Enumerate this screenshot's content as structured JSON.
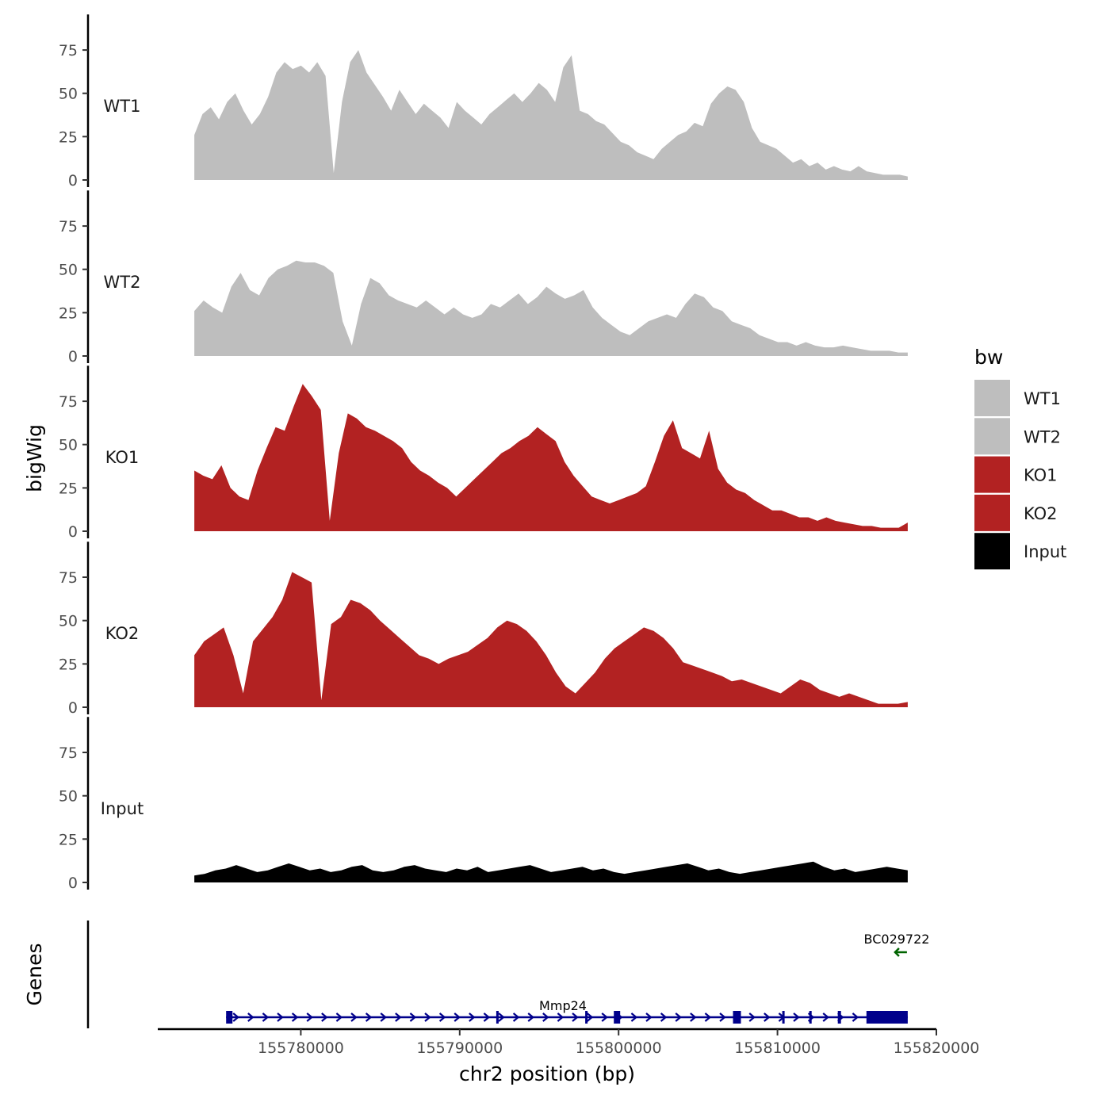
{
  "chart_data": {
    "type": "area",
    "y_axis_title": "bigWig",
    "x_axis_title": "chr2 position (bp)",
    "genes_axis_title": "Genes",
    "legend": {
      "title": "bw",
      "placement": "right",
      "entries": [
        {
          "label": "WT1",
          "color": "#bebebe"
        },
        {
          "label": "WT2",
          "color": "#bebebe"
        },
        {
          "label": "KO1",
          "color": "#b22222"
        },
        {
          "label": "KO2",
          "color": "#b22222"
        },
        {
          "label": "Input",
          "color": "#000000"
        }
      ]
    },
    "ylim": [
      0,
      95
    ],
    "y_ticks": [
      "0",
      "25",
      "50",
      "75"
    ],
    "x_range": [
      155771000,
      155820000
    ],
    "x_ticks": [
      "155780000",
      "155790000",
      "155800000",
      "155810000",
      "155820000"
    ],
    "data_x_start": 155773300,
    "data_x_end": 155818200,
    "tracks": [
      {
        "name": "WT1",
        "color": "#bebebe",
        "values": [
          26,
          38,
          42,
          35,
          45,
          50,
          40,
          32,
          38,
          48,
          62,
          68,
          64,
          66,
          62,
          68,
          60,
          4,
          45,
          68,
          75,
          62,
          55,
          48,
          40,
          52,
          45,
          38,
          44,
          40,
          36,
          30,
          45,
          40,
          36,
          32,
          38,
          42,
          46,
          50,
          45,
          50,
          56,
          52,
          45,
          65,
          72,
          40,
          38,
          34,
          32,
          27,
          22,
          20,
          16,
          14,
          12,
          18,
          22,
          26,
          28,
          33,
          31,
          44,
          50,
          54,
          52,
          45,
          30,
          22,
          20,
          18,
          14,
          10,
          12,
          8,
          10,
          6,
          8,
          6,
          5,
          8,
          5,
          4,
          3,
          3,
          3,
          2
        ]
      },
      {
        "name": "WT2",
        "color": "#bebebe",
        "values": [
          26,
          32,
          28,
          25,
          40,
          48,
          38,
          35,
          45,
          50,
          52,
          55,
          54,
          54,
          52,
          48,
          20,
          6,
          30,
          45,
          42,
          35,
          32,
          30,
          28,
          32,
          28,
          24,
          28,
          24,
          22,
          24,
          30,
          28,
          32,
          36,
          30,
          34,
          40,
          36,
          33,
          35,
          38,
          28,
          22,
          18,
          14,
          12,
          16,
          20,
          22,
          24,
          22,
          30,
          36,
          34,
          28,
          26,
          20,
          18,
          16,
          12,
          10,
          8,
          8,
          6,
          8,
          6,
          5,
          5,
          6,
          5,
          4,
          3,
          3,
          3,
          2,
          2
        ]
      },
      {
        "name": "KO1",
        "color": "#b22222",
        "values": [
          35,
          32,
          30,
          38,
          25,
          20,
          18,
          35,
          48,
          60,
          58,
          72,
          85,
          78,
          70,
          6,
          45,
          68,
          65,
          60,
          58,
          55,
          52,
          48,
          40,
          35,
          32,
          28,
          25,
          20,
          25,
          30,
          35,
          40,
          45,
          48,
          52,
          55,
          60,
          56,
          52,
          40,
          32,
          26,
          20,
          18,
          16,
          18,
          20,
          22,
          26,
          40,
          55,
          64,
          48,
          45,
          42,
          58,
          36,
          28,
          24,
          22,
          18,
          15,
          12,
          12,
          10,
          8,
          8,
          6,
          8,
          6,
          5,
          4,
          3,
          3,
          2,
          2,
          2,
          5
        ]
      },
      {
        "name": "KO2",
        "color": "#b22222",
        "values": [
          30,
          38,
          42,
          46,
          30,
          8,
          38,
          45,
          52,
          62,
          78,
          75,
          72,
          4,
          48,
          52,
          62,
          60,
          56,
          50,
          45,
          40,
          35,
          30,
          28,
          25,
          28,
          30,
          32,
          36,
          40,
          46,
          50,
          48,
          44,
          38,
          30,
          20,
          12,
          8,
          14,
          20,
          28,
          34,
          38,
          42,
          46,
          44,
          40,
          34,
          26,
          24,
          22,
          20,
          18,
          15,
          16,
          14,
          12,
          10,
          8,
          12,
          16,
          14,
          10,
          8,
          6,
          8,
          6,
          4,
          2,
          2,
          2,
          3
        ]
      },
      {
        "name": "Input",
        "color": "#000000",
        "values": [
          4,
          5,
          7,
          8,
          10,
          8,
          6,
          7,
          9,
          11,
          9,
          7,
          8,
          6,
          7,
          9,
          10,
          7,
          6,
          7,
          9,
          10,
          8,
          7,
          6,
          8,
          7,
          9,
          6,
          7,
          8,
          9,
          10,
          8,
          6,
          7,
          8,
          9,
          7,
          8,
          6,
          5,
          6,
          7,
          8,
          9,
          10,
          11,
          9,
          7,
          8,
          6,
          5,
          6,
          7,
          8,
          9,
          10,
          11,
          12,
          9,
          7,
          8,
          6,
          7,
          8,
          9,
          8,
          7
        ]
      }
    ],
    "genes": [
      {
        "name": "Mmp24",
        "strand": "+",
        "color": "#00008b",
        "start": 155775300,
        "end": 155818200,
        "exons": [
          [
            155775300,
            155775700
          ],
          [
            155792300,
            155792450
          ],
          [
            155797900,
            155798050
          ],
          [
            155799700,
            155800100
          ],
          [
            155807200,
            155807700
          ],
          [
            155810300,
            155810450
          ],
          [
            155812000,
            155812150
          ],
          [
            155813800,
            155814000
          ],
          [
            155815600,
            155818200
          ]
        ]
      },
      {
        "name": "BC029722",
        "strand": "-",
        "color": "#006400",
        "start": 155817300,
        "end": 155818200,
        "exons": []
      }
    ]
  }
}
